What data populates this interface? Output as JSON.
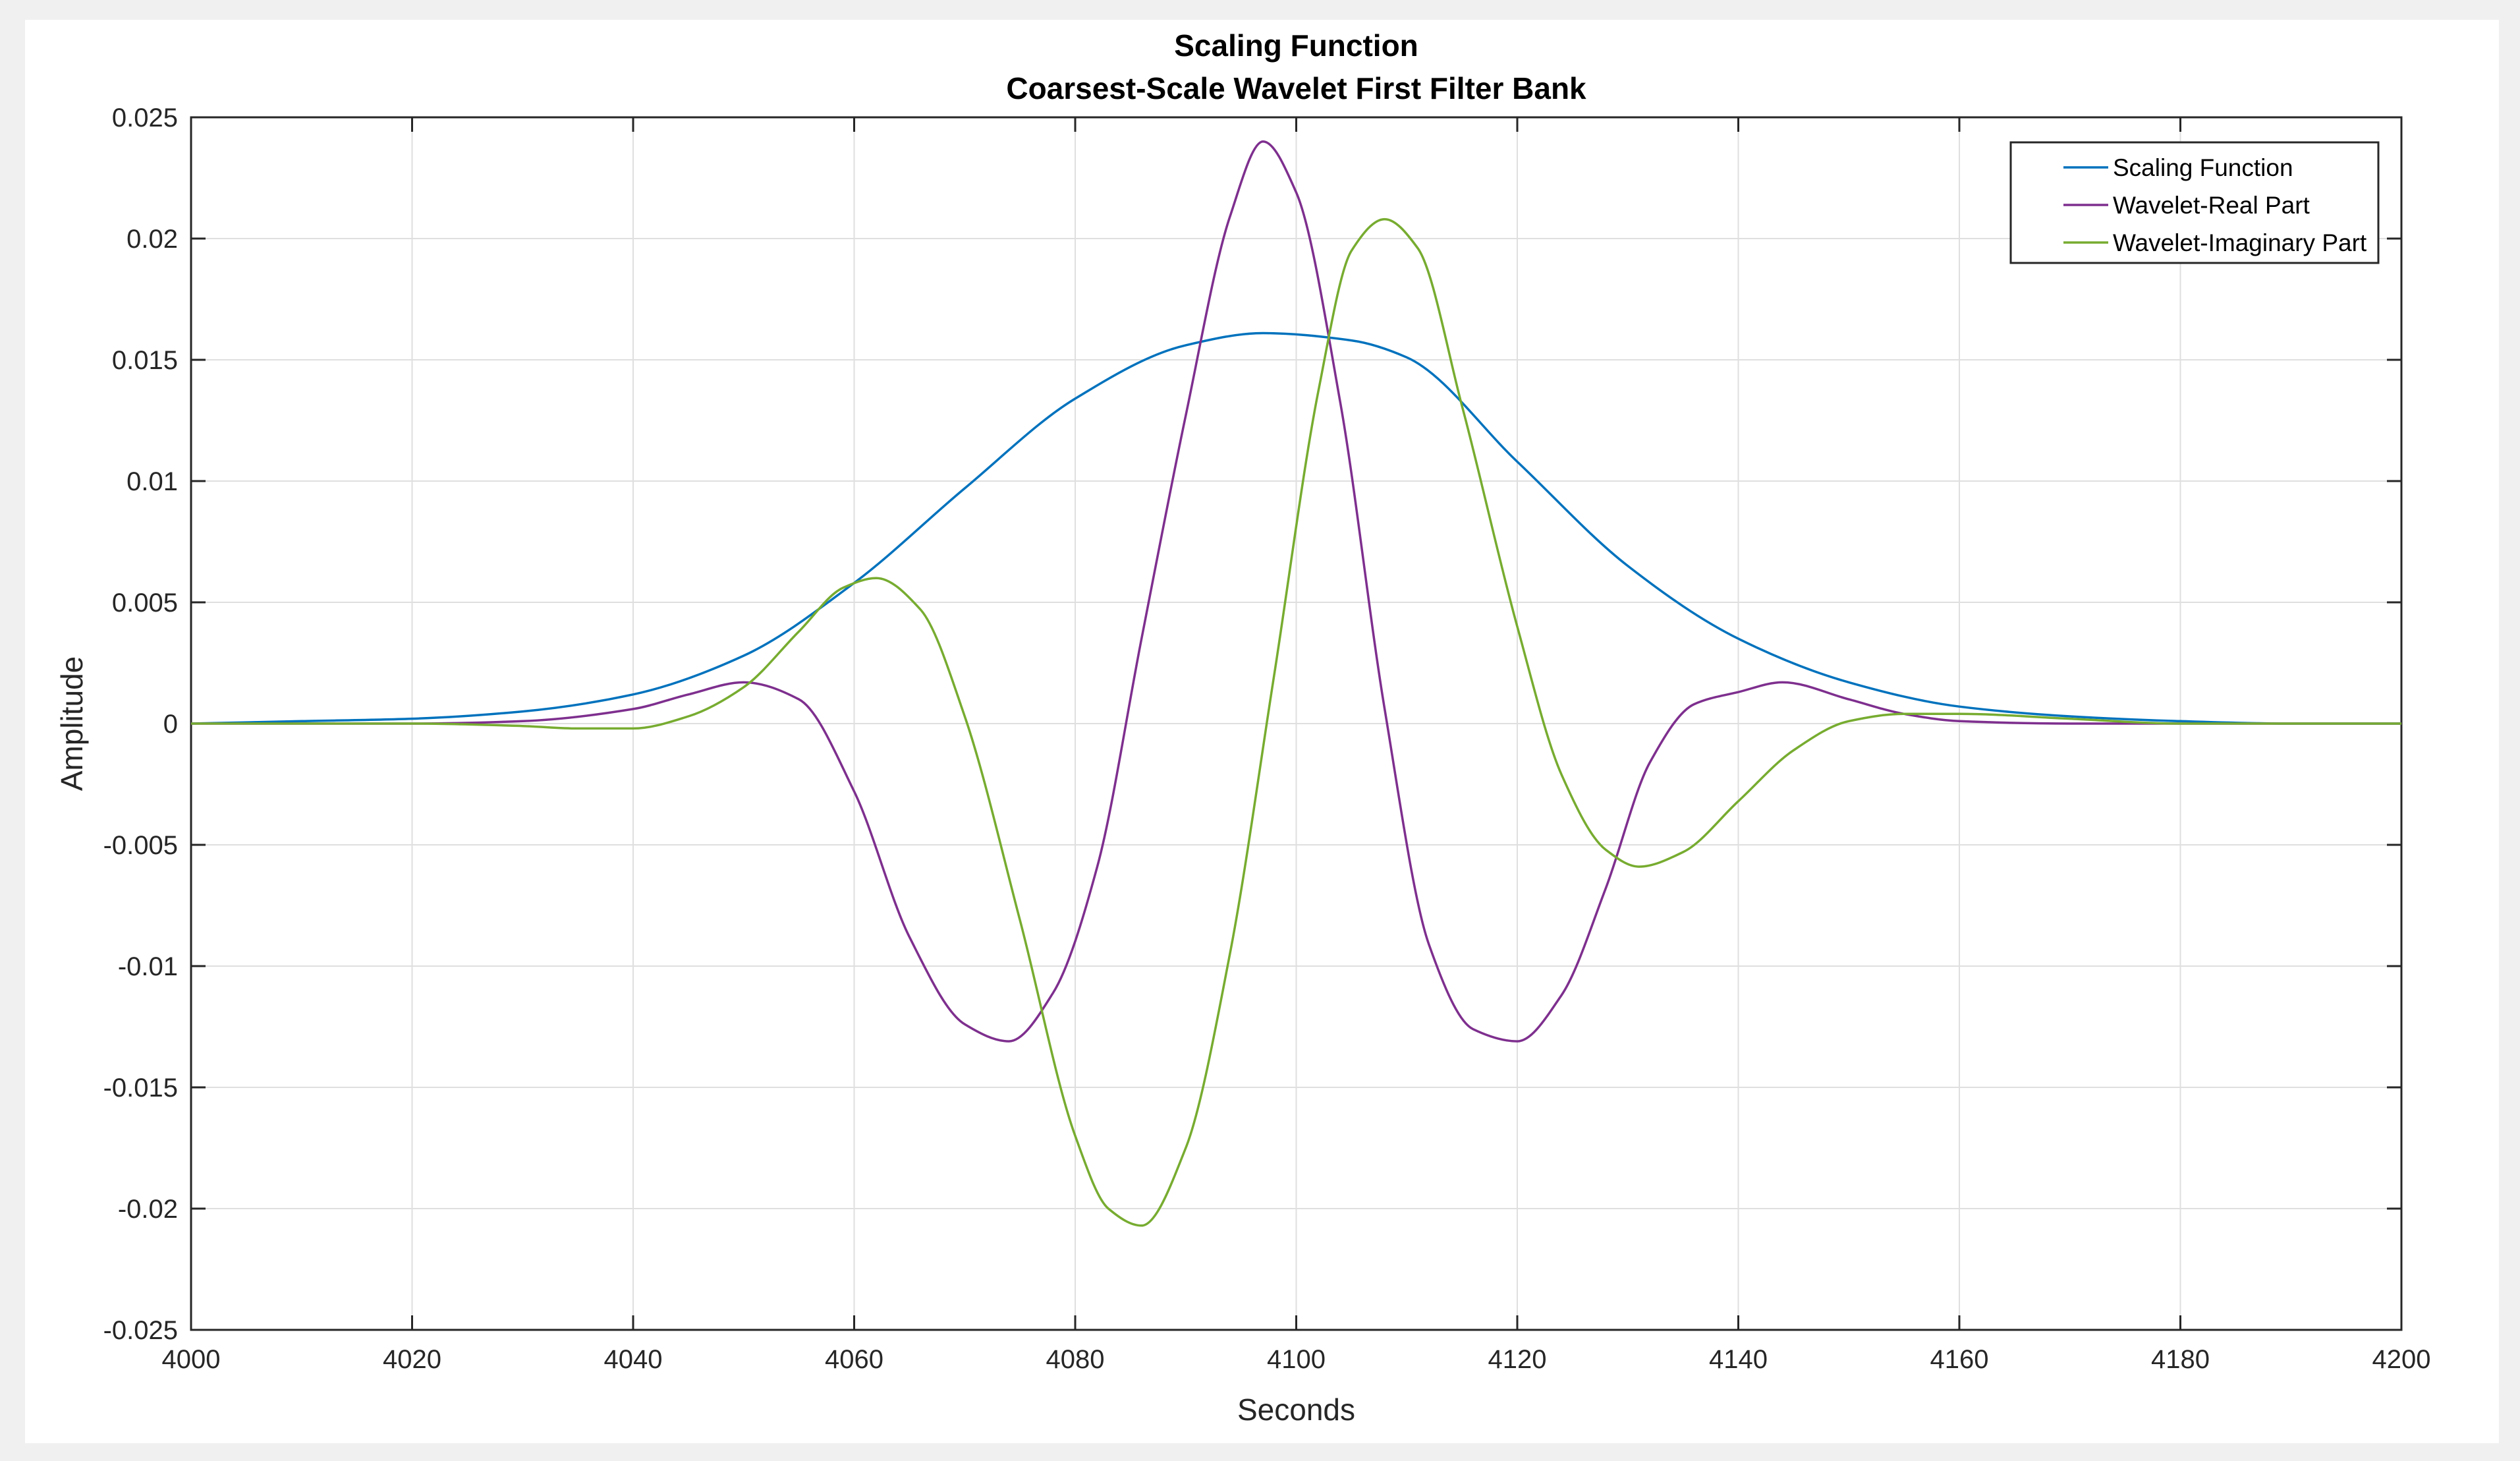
{
  "chart_data": {
    "type": "line",
    "title": "Scaling Function",
    "subtitle": "Coarsest-Scale Wavelet First Filter Bank",
    "xlabel": "Seconds",
    "ylabel": "Amplitude",
    "xlim": [
      4000,
      4200
    ],
    "ylim": [
      -0.025,
      0.025
    ],
    "x_ticks": [
      4000,
      4020,
      4040,
      4060,
      4080,
      4100,
      4120,
      4140,
      4160,
      4180,
      4200
    ],
    "x_tick_labels": [
      "4000",
      "4020",
      "4040",
      "4060",
      "4080",
      "4100",
      "4120",
      "4140",
      "4160",
      "4180",
      "4200"
    ],
    "y_ticks": [
      0.025,
      0.02,
      0.015,
      0.01,
      0.005,
      0,
      -0.005,
      -0.01,
      -0.015,
      -0.02,
      -0.025
    ],
    "y_tick_labels": [
      "0.025",
      "0.02",
      "0.015",
      "0.01",
      "0.005",
      "0",
      "-0.005",
      "-0.01",
      "-0.015",
      "-0.02",
      "-0.025"
    ],
    "grid": true,
    "legend_position": "top-right",
    "series": [
      {
        "name": "Scaling Function",
        "color": "#0072BD",
        "x": [
          4000,
          4010,
          4020,
          4030,
          4040,
          4050,
          4060,
          4070,
          4080,
          4090,
          4097,
          4105,
          4110,
          4120,
          4130,
          4140,
          4150,
          4160,
          4170,
          4180,
          4190,
          4200
        ],
        "y": [
          0.0,
          0.0001,
          0.0002,
          0.0005,
          0.0012,
          0.0028,
          0.0058,
          0.0097,
          0.0134,
          0.0156,
          0.0161,
          0.0158,
          0.0151,
          0.0108,
          0.0065,
          0.0035,
          0.0017,
          0.0007,
          0.0003,
          0.0001,
          0.0,
          0.0
        ]
      },
      {
        "name": "Wavelet-Real Part",
        "color": "#7E2F8E",
        "x": [
          4000,
          4020,
          4030,
          4040,
          4045,
          4050,
          4055,
          4060,
          4065,
          4070,
          4074,
          4078,
          4082,
          4086,
          4090,
          4094,
          4097,
          4100,
          4104,
          4108,
          4112,
          4116,
          4120,
          4124,
          4128,
          4132,
          4136,
          4140,
          4144,
          4150,
          4155,
          4160,
          4170,
          4180,
          4200
        ],
        "y": [
          0.0,
          0.0,
          0.0001,
          0.0006,
          0.0012,
          0.0017,
          0.001,
          -0.0028,
          -0.0088,
          -0.0124,
          -0.0131,
          -0.0111,
          -0.0059,
          0.0035,
          0.0127,
          0.0209,
          0.024,
          0.0219,
          0.0132,
          0.0006,
          -0.0091,
          -0.0126,
          -0.0131,
          -0.0112,
          -0.0068,
          -0.0016,
          0.0008,
          0.0013,
          0.0017,
          0.001,
          0.0004,
          0.0001,
          0.0,
          0.0,
          0.0
        ]
      },
      {
        "name": "Wavelet-Imaginary Part",
        "color": "#77AC30",
        "x": [
          4000,
          4020,
          4030,
          4035,
          4040,
          4045,
          4050,
          4055,
          4059,
          4062,
          4066,
          4070,
          4075,
          4080,
          4083,
          4086,
          4090,
          4094,
          4098,
          4102,
          4105,
          4108,
          4111,
          4115,
          4120,
          4124,
          4128,
          4131,
          4135,
          4140,
          4145,
          4150,
          4155,
          4160,
          4170,
          4180,
          4200
        ],
        "y": [
          0.0,
          0.0,
          -0.0001,
          -0.0002,
          -0.0002,
          0.0003,
          0.0015,
          0.0038,
          0.0056,
          0.006,
          0.0047,
          0.0003,
          -0.0081,
          -0.017,
          -0.02,
          -0.0207,
          -0.0175,
          -0.0095,
          0.002,
          0.0137,
          0.0195,
          0.0208,
          0.0196,
          0.0131,
          0.004,
          -0.0021,
          -0.0052,
          -0.0059,
          -0.0053,
          -0.0032,
          -0.0011,
          0.0001,
          0.0004,
          0.0004,
          0.0002,
          0.0,
          0.0
        ]
      }
    ]
  }
}
